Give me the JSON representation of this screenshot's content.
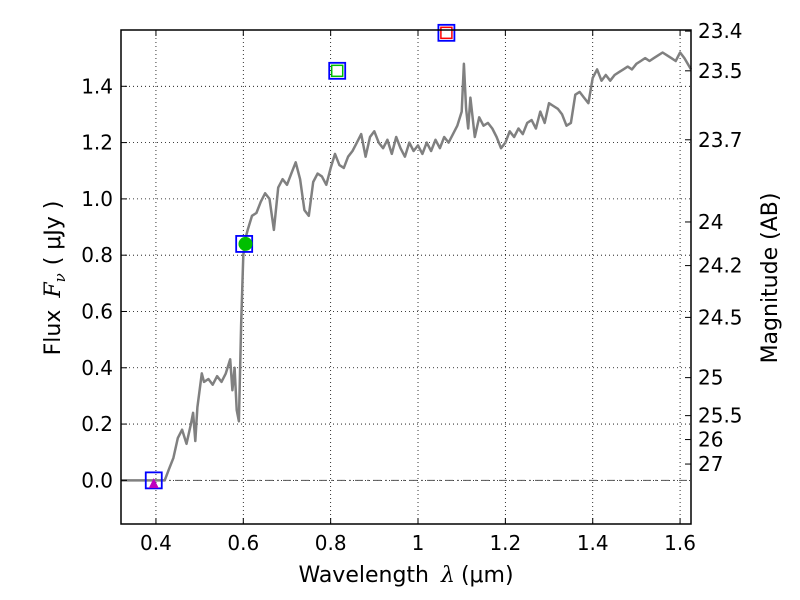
{
  "chart_data": {
    "type": "line",
    "xlabel_prefix": "Wavelength",
    "xlabel_symbol": "λ",
    "xlabel_unit": "(μm)",
    "ylabel_prefix": "Flux",
    "ylabel_symbol": "F",
    "ylabel_subscript": "ν",
    "ylabel_unit": "( μJy )",
    "y2label": "Magnitude (AB)",
    "xlim": [
      0.32,
      1.625
    ],
    "ylim": [
      -0.155,
      1.6
    ],
    "grid": true,
    "x_ticks": [
      {
        "value": 0.4,
        "label": "0.4"
      },
      {
        "value": 0.6,
        "label": "0.6"
      },
      {
        "value": 0.8,
        "label": "0.8"
      },
      {
        "value": 1.0,
        "label": "1"
      },
      {
        "value": 1.2,
        "label": "1.2"
      },
      {
        "value": 1.4,
        "label": "1.4"
      },
      {
        "value": 1.6,
        "label": "1.6"
      }
    ],
    "y_ticks": [
      {
        "value": 0.0,
        "label": "0.0"
      },
      {
        "value": 0.2,
        "label": "0.2"
      },
      {
        "value": 0.4,
        "label": "0.4"
      },
      {
        "value": 0.6,
        "label": "0.6"
      },
      {
        "value": 0.8,
        "label": "0.8"
      },
      {
        "value": 1.0,
        "label": "1.0"
      },
      {
        "value": 1.2,
        "label": "1.2"
      },
      {
        "value": 1.4,
        "label": "1.4"
      }
    ],
    "magnitude_ticks": [
      {
        "label": "23.4",
        "flux": 1.596
      },
      {
        "label": "23.5",
        "flux": 1.455
      },
      {
        "label": "23.7",
        "flux": 1.21
      },
      {
        "label": "24",
        "flux": 0.918
      },
      {
        "label": "24.2",
        "flux": 0.763
      },
      {
        "label": "24.5",
        "flux": 0.579
      },
      {
        "label": "25",
        "flux": 0.365
      },
      {
        "label": "25.5",
        "flux": 0.23
      },
      {
        "label": "26",
        "flux": 0.145
      },
      {
        "label": "27",
        "flux": 0.058
      }
    ],
    "series": [
      {
        "color": "#808080",
        "x": [
          0.32,
          0.42,
          0.43,
          0.44,
          0.45,
          0.46,
          0.47,
          0.48,
          0.485,
          0.49,
          0.495,
          0.5,
          0.505,
          0.51,
          0.52,
          0.53,
          0.54,
          0.55,
          0.56,
          0.57,
          0.575,
          0.58,
          0.585,
          0.59,
          0.595,
          0.6,
          0.605,
          0.61,
          0.62,
          0.63,
          0.64,
          0.65,
          0.66,
          0.67,
          0.68,
          0.69,
          0.7,
          0.71,
          0.72,
          0.73,
          0.74,
          0.75,
          0.76,
          0.77,
          0.78,
          0.79,
          0.8,
          0.81,
          0.82,
          0.83,
          0.84,
          0.85,
          0.86,
          0.87,
          0.88,
          0.89,
          0.9,
          0.91,
          0.92,
          0.93,
          0.94,
          0.95,
          0.96,
          0.97,
          0.98,
          0.99,
          1.0,
          1.01,
          1.02,
          1.03,
          1.04,
          1.05,
          1.06,
          1.07,
          1.08,
          1.09,
          1.1,
          1.105,
          1.11,
          1.115,
          1.12,
          1.13,
          1.14,
          1.15,
          1.16,
          1.17,
          1.18,
          1.19,
          1.2,
          1.21,
          1.22,
          1.23,
          1.24,
          1.25,
          1.26,
          1.27,
          1.28,
          1.29,
          1.3,
          1.31,
          1.32,
          1.33,
          1.34,
          1.35,
          1.36,
          1.37,
          1.38,
          1.39,
          1.4,
          1.41,
          1.42,
          1.43,
          1.44,
          1.45,
          1.46,
          1.47,
          1.48,
          1.49,
          1.5,
          1.51,
          1.52,
          1.53,
          1.54,
          1.55,
          1.56,
          1.57,
          1.58,
          1.59,
          1.6,
          1.61,
          1.625
        ],
        "y": [
          0.0,
          0.0,
          0.04,
          0.08,
          0.15,
          0.18,
          0.13,
          0.2,
          0.24,
          0.14,
          0.26,
          0.32,
          0.38,
          0.35,
          0.36,
          0.34,
          0.37,
          0.35,
          0.38,
          0.43,
          0.32,
          0.4,
          0.25,
          0.21,
          0.55,
          0.8,
          0.86,
          0.89,
          0.94,
          0.95,
          0.99,
          1.02,
          1.0,
          0.89,
          1.04,
          1.07,
          1.05,
          1.09,
          1.13,
          1.07,
          0.96,
          0.94,
          1.06,
          1.09,
          1.08,
          1.05,
          1.11,
          1.16,
          1.12,
          1.11,
          1.15,
          1.17,
          1.2,
          1.23,
          1.15,
          1.22,
          1.24,
          1.2,
          1.18,
          1.21,
          1.16,
          1.22,
          1.18,
          1.15,
          1.2,
          1.17,
          1.19,
          1.16,
          1.2,
          1.17,
          1.21,
          1.18,
          1.22,
          1.2,
          1.23,
          1.26,
          1.31,
          1.48,
          1.32,
          1.25,
          1.36,
          1.22,
          1.29,
          1.26,
          1.27,
          1.25,
          1.22,
          1.18,
          1.2,
          1.24,
          1.22,
          1.25,
          1.23,
          1.27,
          1.28,
          1.25,
          1.31,
          1.27,
          1.34,
          1.33,
          1.32,
          1.3,
          1.26,
          1.27,
          1.37,
          1.38,
          1.36,
          1.34,
          1.43,
          1.46,
          1.42,
          1.44,
          1.42,
          1.44,
          1.45,
          1.46,
          1.47,
          1.46,
          1.48,
          1.49,
          1.5,
          1.49,
          1.5,
          1.51,
          1.52,
          1.51,
          1.5,
          1.49,
          1.52,
          1.5,
          1.46
        ]
      }
    ],
    "markers": [
      {
        "kind": "square",
        "x": 0.395,
        "y": 0.0,
        "color": "#0000ff"
      },
      {
        "kind": "triangle",
        "x": 0.395,
        "y": -0.01,
        "color": "#bf00bf"
      },
      {
        "kind": "square",
        "x": 0.602,
        "y": 0.84,
        "color": "#0000ff"
      },
      {
        "kind": "circle",
        "x": 0.605,
        "y": 0.84,
        "color": "#00bf00"
      },
      {
        "kind": "square",
        "x": 0.815,
        "y": 1.455,
        "color": "#0000ff"
      },
      {
        "kind": "square-small",
        "x": 0.815,
        "y": 1.455,
        "color": "#00bf00"
      },
      {
        "kind": "square",
        "x": 1.065,
        "y": 1.59,
        "color": "#0000ff"
      },
      {
        "kind": "square-small",
        "x": 1.065,
        "y": 1.59,
        "color": "#ff0000"
      }
    ]
  }
}
